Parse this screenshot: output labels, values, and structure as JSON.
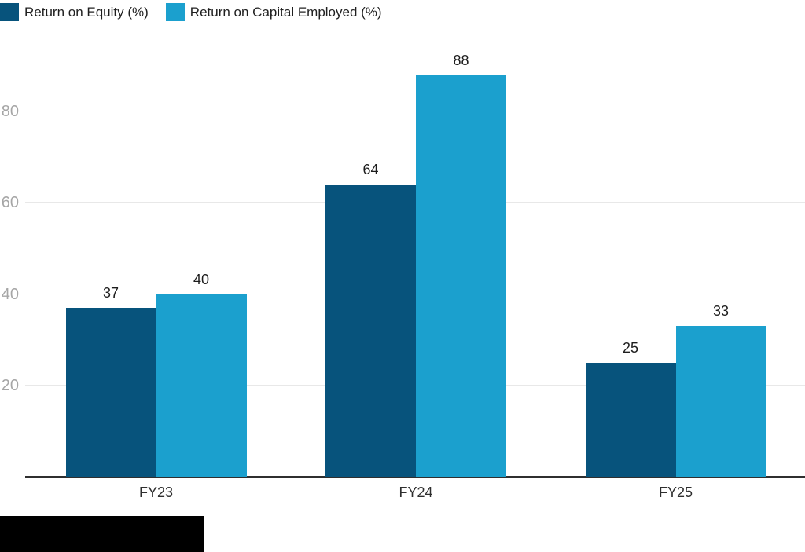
{
  "legend": {
    "items": [
      {
        "label": "Return on Equity (%)",
        "color": "#07537c"
      },
      {
        "label": "Return on Capital Employed (%)",
        "color": "#1ba0ce"
      }
    ]
  },
  "chart_data": {
    "type": "bar",
    "title": "",
    "xlabel": "",
    "ylabel": "",
    "categories": [
      "FY23",
      "FY24",
      "FY25"
    ],
    "series": [
      {
        "name": "Return on Equity (%)",
        "short": "roe",
        "color": "#07537c",
        "values": [
          37,
          64,
          25
        ]
      },
      {
        "name": "Return on Capital Employed (%)",
        "short": "roce",
        "color": "#1ba0ce",
        "values": [
          40,
          88,
          33
        ]
      }
    ],
    "yticks": [
      20,
      40,
      60,
      80
    ],
    "ylim": [
      0,
      93.6
    ],
    "grid": true,
    "legend_position": "top-left",
    "value_labels": true,
    "axis_line_color": "#2f2f2f",
    "gridline_color": "#e8e8e8",
    "tick_label_color": "#a6a6a6"
  }
}
